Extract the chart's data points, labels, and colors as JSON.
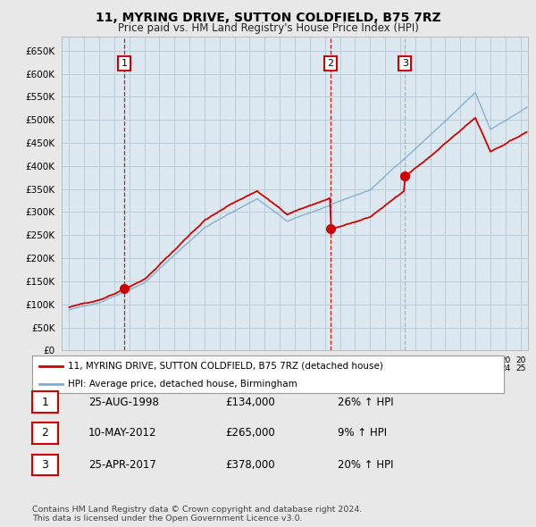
{
  "title": "11, MYRING DRIVE, SUTTON COLDFIELD, B75 7RZ",
  "subtitle": "Price paid vs. HM Land Registry's House Price Index (HPI)",
  "ylabel_ticks": [
    "£0",
    "£50K",
    "£100K",
    "£150K",
    "£200K",
    "£250K",
    "£300K",
    "£350K",
    "£400K",
    "£450K",
    "£500K",
    "£550K",
    "£600K",
    "£650K"
  ],
  "ytick_values": [
    0,
    50000,
    100000,
    150000,
    200000,
    250000,
    300000,
    350000,
    400000,
    450000,
    500000,
    550000,
    600000,
    650000
  ],
  "ylim": [
    0,
    680000
  ],
  "xlim_start": 1994.5,
  "xlim_end": 2025.5,
  "sale_color": "#cc0000",
  "hpi_color": "#7faacc",
  "sale_label": "11, MYRING DRIVE, SUTTON COLDFIELD, B75 7RZ (detached house)",
  "hpi_label": "HPI: Average price, detached house, Birmingham",
  "transactions": [
    {
      "num": 1,
      "date": "25-AUG-1998",
      "price": 134000,
      "pct": "26%",
      "dir": "↑",
      "year": 1998.65
    },
    {
      "num": 2,
      "date": "10-MAY-2012",
      "price": 265000,
      "pct": "9%",
      "dir": "↑",
      "year": 2012.36
    },
    {
      "num": 3,
      "date": "25-APR-2017",
      "price": 378000,
      "pct": "20%",
      "dir": "↑",
      "year": 2017.32
    }
  ],
  "vline_colors": [
    "#cc0000",
    "#cc0000",
    "#aaaaaa"
  ],
  "vline_styles": [
    "--",
    "--",
    "--"
  ],
  "footnote": "Contains HM Land Registry data © Crown copyright and database right 2024.\nThis data is licensed under the Open Government Licence v3.0.",
  "background_color": "#e8e8e8",
  "plot_bg_color": "#dce8f0",
  "grid_color": "#b8ccd8",
  "legend_border_color": "#999999"
}
